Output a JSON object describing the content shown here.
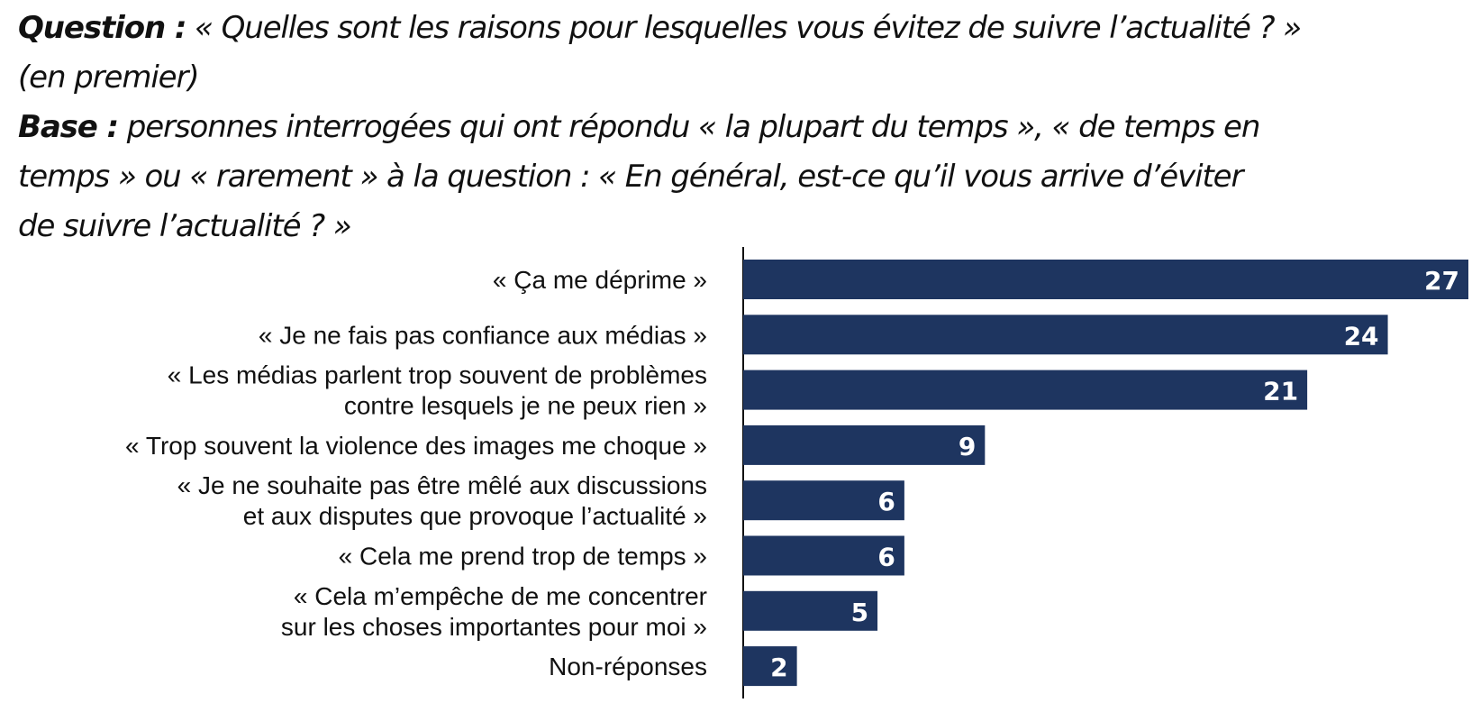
{
  "header": {
    "question_label": "Question :",
    "question_text_1": "« Quelles sont les raisons pour lesquelles vous évitez de suivre l’actualité ? »",
    "question_text_2": "(en premier)",
    "base_label": "Base :",
    "base_text_1": "personnes interrogées qui ont répondu « la plupart du temps », « de temps en",
    "base_text_2": "temps » ou « rarement » à la question : « En général, est-ce qu’il vous arrive d’éviter",
    "base_text_3": "de suivre l’actualité ? »"
  },
  "colors": {
    "bar": "#1e3560",
    "value_text": "#ffffff"
  },
  "chart_data": {
    "type": "bar",
    "orientation": "horizontal",
    "title": "",
    "xlabel": "",
    "ylabel": "",
    "xlim": [
      0,
      27
    ],
    "grid": false,
    "categories": [
      [
        "« Ça me déprime »"
      ],
      [
        "« Je ne fais pas confiance aux médias »"
      ],
      [
        "« Les médias parlent trop souvent de problèmes",
        "contre lesquels je ne peux rien »"
      ],
      [
        "« Trop souvent la violence des images me choque »"
      ],
      [
        "« Je ne souhaite pas être mêlé aux discussions",
        "et aux disputes que provoque l’actualité »"
      ],
      [
        "« Cela me prend trop de temps »"
      ],
      [
        "« Cela m’empêche de me concentrer",
        "sur les choses importantes pour moi »"
      ],
      [
        "Non-réponses"
      ]
    ],
    "values": [
      27,
      24,
      21,
      9,
      6,
      6,
      5,
      2
    ]
  }
}
